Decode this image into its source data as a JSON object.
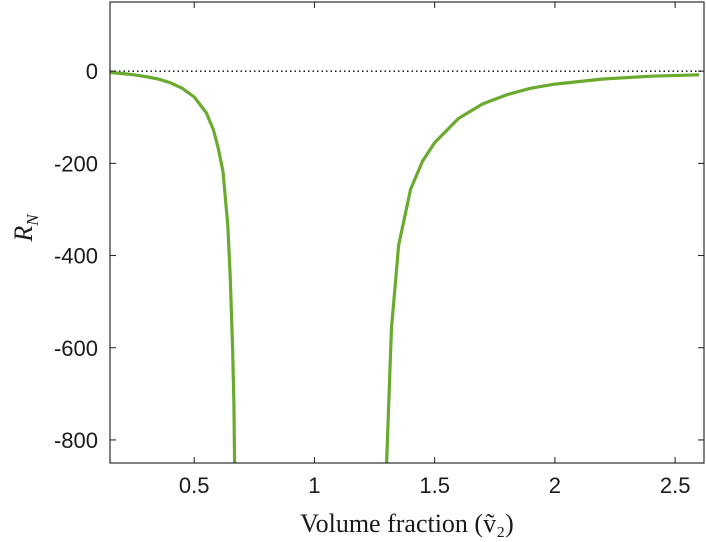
{
  "chart_data": {
    "type": "line",
    "title": "",
    "xlabel": "Volume fraction (ṽ₂)",
    "ylabel": "R_N",
    "xlim": [
      0.15,
      2.62
    ],
    "ylim": [
      -850,
      150
    ],
    "xticks": [
      0.5,
      1,
      1.5,
      2,
      2.5
    ],
    "xtick_labels": [
      "0.5",
      "1",
      "1.5",
      "2",
      "2.5"
    ],
    "yticks": [
      0,
      -200,
      -400,
      -600,
      -800
    ],
    "ytick_labels": [
      "0",
      "-200",
      "-400",
      "-600",
      "-800"
    ],
    "reference_line": {
      "y": 0,
      "style": "dotted",
      "color": "#000000"
    },
    "grid": false,
    "line_color": "#6aaa2f",
    "series": [
      {
        "name": "",
        "segments": [
          {
            "x": [
              0.15,
              0.2,
              0.25,
              0.3,
              0.35,
              0.4,
              0.45,
              0.5,
              0.55,
              0.58,
              0.6,
              0.62,
              0.64,
              0.65,
              0.66,
              0.665,
              0.668
            ],
            "y": [
              -3,
              -5,
              -8,
              -12,
              -17,
              -25,
              -37,
              -56,
              -90,
              -127,
              -167,
              -218,
              -334,
              -445,
              -601,
              -720,
              -850
            ]
          },
          {
            "x": [
              1.3,
              1.32,
              1.35,
              1.4,
              1.45,
              1.5,
              1.6,
              1.7,
              1.8,
              1.9,
              2.0,
              2.2,
              2.4,
              2.6
            ],
            "y": [
              -850,
              -560,
              -378,
              -256,
              -195,
              -155,
              -102,
              -71,
              -51,
              -37,
              -28,
              -17,
              -11,
              -8
            ]
          }
        ]
      }
    ]
  }
}
